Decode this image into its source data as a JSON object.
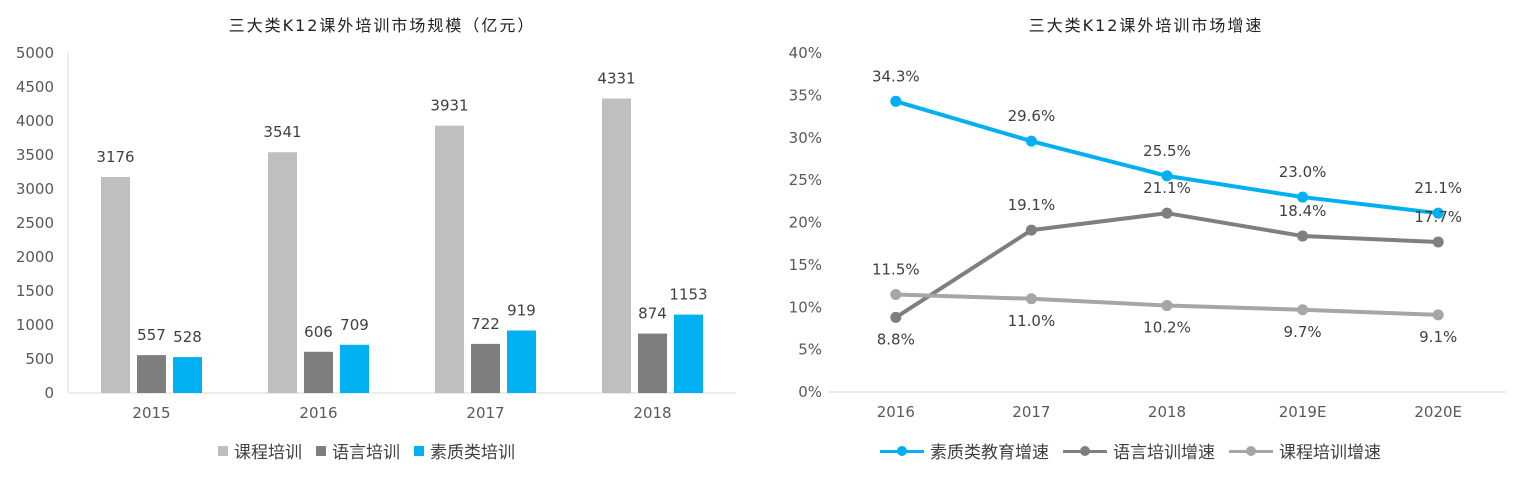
{
  "chart_data": [
    {
      "type": "bar",
      "title": "三大类K12课外培训市场规模（亿元）",
      "categories": [
        "2015",
        "2016",
        "2017",
        "2018"
      ],
      "series": [
        {
          "name": "课程培训",
          "color": "#bfbfbf",
          "values": [
            3176,
            3541,
            3931,
            4331
          ]
        },
        {
          "name": "语言培训",
          "color": "#7f7f7f",
          "values": [
            557,
            606,
            722,
            874
          ]
        },
        {
          "name": "素质类培训",
          "color": "#00b0f0",
          "values": [
            528,
            709,
            919,
            1153
          ]
        }
      ],
      "ylim": [
        0,
        5000
      ],
      "yticks": [
        "0",
        "500",
        "1000",
        "1500",
        "2000",
        "2500",
        "3000",
        "3500",
        "4000",
        "4500",
        "5000"
      ],
      "legend": "bottom",
      "grid": false
    },
    {
      "type": "line",
      "title": "三大类K12课外培训市场增速",
      "categories": [
        "2016",
        "2017",
        "2018",
        "2019E",
        "2020E"
      ],
      "series": [
        {
          "name": "素质类教育增速",
          "color": "#00b0f0",
          "values": [
            34.3,
            29.6,
            25.5,
            23.0,
            21.1
          ],
          "labels": [
            "34.3%",
            "29.6%",
            "25.5%",
            "23.0%",
            "21.1%"
          ]
        },
        {
          "name": "语言培训增速",
          "color": "#7f7f7f",
          "values": [
            8.8,
            19.1,
            21.1,
            18.4,
            17.7
          ],
          "labels": [
            "8.8%",
            "19.1%",
            "21.1%",
            "18.4%",
            "17.7%"
          ]
        },
        {
          "name": "课程培训增速",
          "color": "#a6a6a6",
          "values": [
            11.5,
            11.0,
            10.2,
            9.7,
            9.1
          ],
          "labels": [
            "11.5%",
            "11.0%",
            "10.2%",
            "9.7%",
            "9.1%"
          ]
        }
      ],
      "ylim": [
        0,
        40
      ],
      "yticks": [
        "0%",
        "5%",
        "10%",
        "15%",
        "20%",
        "25%",
        "30%",
        "35%",
        "40%"
      ],
      "legend": "bottom",
      "grid": false
    }
  ]
}
